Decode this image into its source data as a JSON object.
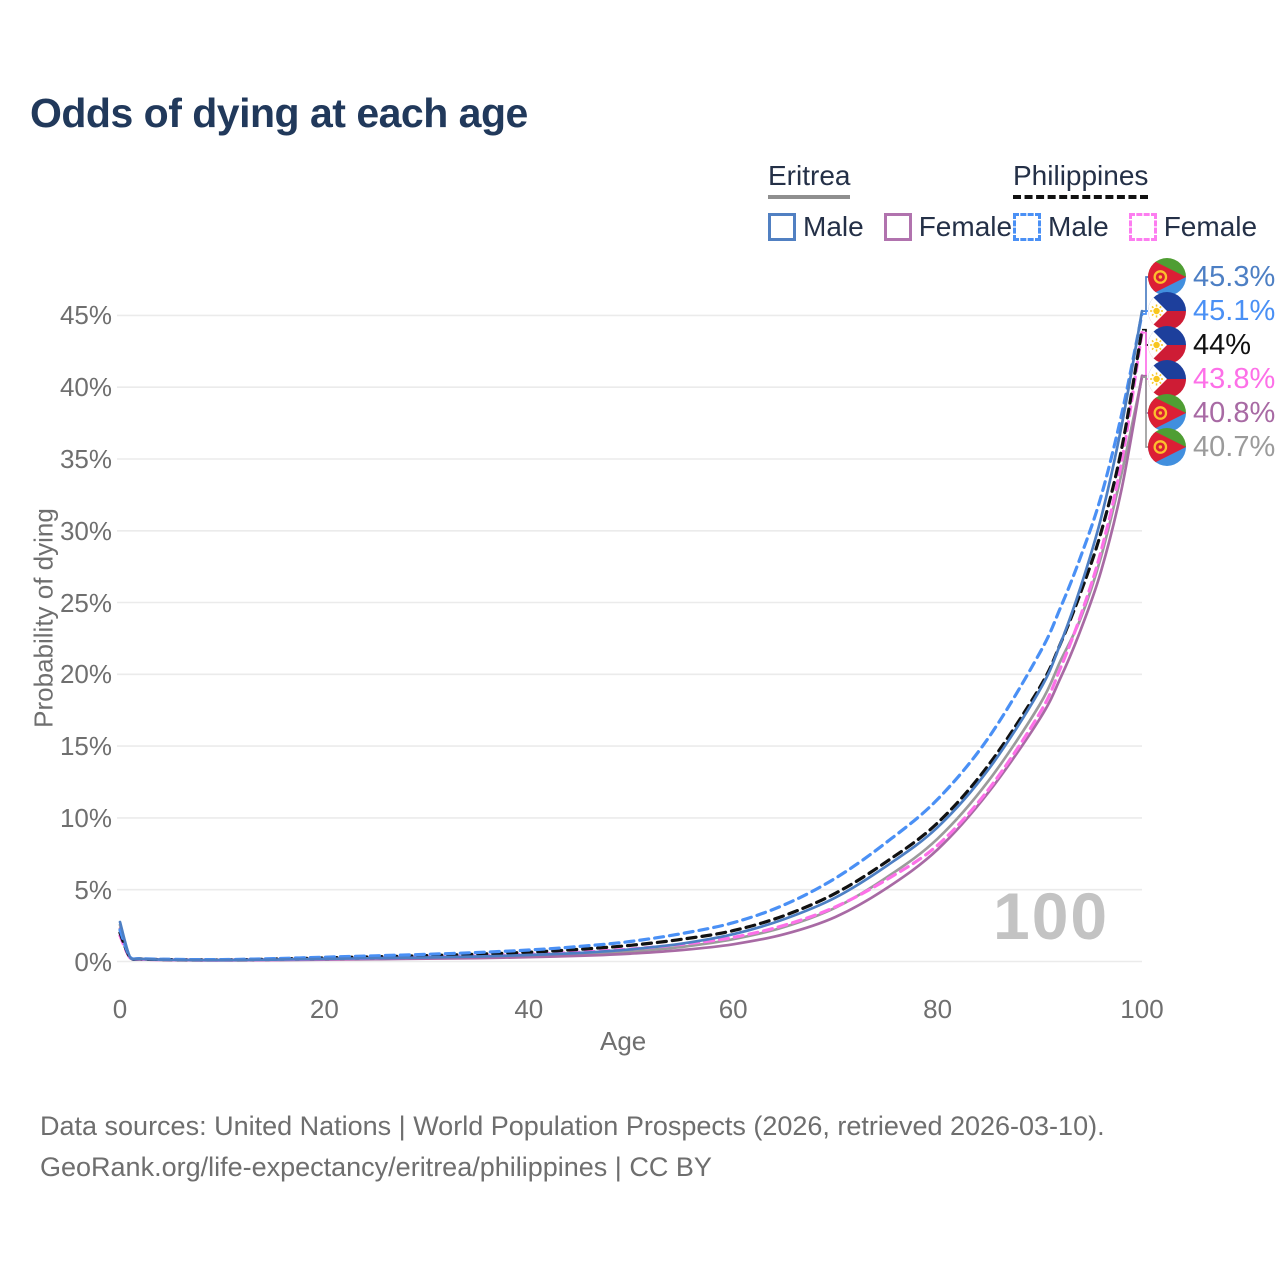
{
  "title": {
    "text": "Odds of dying at each age",
    "color": "#21395b"
  },
  "legend": {
    "text_color": "#243047",
    "groups": [
      {
        "name": "Eritrea",
        "underline_style": "solid",
        "underline_color": "#8f8f8f",
        "items": [
          {
            "label": "Male",
            "color": "#5180c2",
            "dash": false
          },
          {
            "label": "Female",
            "color": "#b173ae",
            "dash": false
          }
        ]
      },
      {
        "name": "Philippines",
        "underline_style": "dashed",
        "underline_color": "#111111",
        "items": [
          {
            "label": "Male",
            "color": "#4a90f5",
            "dash": true
          },
          {
            "label": "Female",
            "color": "#fd7df0",
            "dash": true
          }
        ]
      }
    ]
  },
  "axes": {
    "x_label": "Age",
    "y_label": "Probability of dying",
    "x_ticks": [
      0,
      20,
      40,
      60,
      80,
      100
    ],
    "x_tick_labels": [
      "0",
      "20",
      "40",
      "60",
      "80",
      "100"
    ],
    "y_ticks": [
      0,
      5,
      10,
      15,
      20,
      25,
      30,
      35,
      40,
      45
    ],
    "y_tick_labels": [
      "0%",
      "5%",
      "10%",
      "15%",
      "20%",
      "25%",
      "30%",
      "35%",
      "40%",
      "45%"
    ],
    "tick_color": "#6f6f6f",
    "grid_color": "#ebebeb"
  },
  "watermark": {
    "text": "100",
    "color": "#c3c3c3"
  },
  "footer": {
    "line1": "Data sources: United Nations | World Population Prospects (2026, retrieved 2026-03-10).",
    "line2": "GeoRank.org/life-expectancy/eritrea/philippines | CC BY",
    "color": "#6e6e6e"
  },
  "flags": {
    "eritrea": {
      "green": "#4f9e33",
      "blue": "#418fde",
      "red": "#dc1f35",
      "gold": "#fbc02d"
    },
    "philippines": {
      "blue": "#1d3f9c",
      "red": "#ce1c35",
      "white": "#ffffff",
      "gold": "#f8c61e"
    }
  },
  "chart_data": {
    "type": "line",
    "title": "Odds of dying at each age",
    "xlabel": "Age",
    "ylabel": "Probability of dying",
    "xlim": [
      0,
      100
    ],
    "ylim": [
      0,
      47
    ],
    "unit": "%",
    "grid": "horizontal",
    "ages": [
      0,
      1,
      2,
      5,
      10,
      15,
      20,
      25,
      30,
      35,
      40,
      45,
      50,
      55,
      60,
      65,
      70,
      75,
      80,
      85,
      90,
      92,
      94,
      96,
      98,
      100
    ],
    "series": [
      {
        "id": "eritrea-male",
        "name": "Eritrea Male",
        "country": "Eritrea",
        "sex": "Male",
        "color": "#4d7fc4",
        "dash": false,
        "flag": "eritrea",
        "end_label": "45.3%",
        "values": [
          2.75,
          0.28,
          0.18,
          0.12,
          0.1,
          0.13,
          0.18,
          0.23,
          0.28,
          0.35,
          0.45,
          0.6,
          0.85,
          1.25,
          1.9,
          2.95,
          4.45,
          6.65,
          9.35,
          13.4,
          18.9,
          22.1,
          26.1,
          30.9,
          37.3,
          45.3
        ]
      },
      {
        "id": "philippines-male",
        "name": "Philippines Male",
        "country": "Philippines",
        "sex": "Male",
        "color": "#4a90f5",
        "dash": true,
        "flag": "philippines",
        "end_label": "45.1%",
        "values": [
          2.2,
          0.3,
          0.2,
          0.15,
          0.13,
          0.2,
          0.3,
          0.4,
          0.5,
          0.63,
          0.8,
          1.05,
          1.4,
          1.95,
          2.7,
          3.95,
          5.8,
          8.3,
          11.3,
          15.6,
          21.5,
          24.6,
          28.2,
          32.4,
          38.1,
          45.1
        ]
      },
      {
        "id": "philippines-both",
        "name": "Philippines Both sexes",
        "country": "Philippines",
        "sex": "Both",
        "color": "#111111",
        "dash": true,
        "flag": "philippines",
        "end_label": "44%",
        "values": [
          2.0,
          0.27,
          0.18,
          0.13,
          0.11,
          0.17,
          0.25,
          0.33,
          0.41,
          0.51,
          0.65,
          0.85,
          1.13,
          1.55,
          2.15,
          3.2,
          4.75,
          6.95,
          9.65,
          13.7,
          19.1,
          22.1,
          25.7,
          29.9,
          35.7,
          44.0
        ]
      },
      {
        "id": "philippines-female",
        "name": "Philippines Female",
        "country": "Philippines",
        "sex": "Female",
        "color": "#fd70e8",
        "dash": true,
        "flag": "philippines",
        "end_label": "43.8%",
        "values": [
          1.8,
          0.24,
          0.16,
          0.12,
          0.1,
          0.13,
          0.18,
          0.24,
          0.31,
          0.39,
          0.5,
          0.65,
          0.87,
          1.2,
          1.68,
          2.52,
          3.8,
          5.7,
          8.1,
          12.0,
          17.3,
          20.4,
          24.1,
          28.6,
          34.8,
          43.8
        ]
      },
      {
        "id": "eritrea-female",
        "name": "Eritrea Female",
        "country": "Eritrea",
        "sex": "Female",
        "color": "#a86aa4",
        "dash": false,
        "flag": "eritrea",
        "end_label": "40.8%",
        "values": [
          2.3,
          0.24,
          0.15,
          0.1,
          0.08,
          0.1,
          0.13,
          0.16,
          0.2,
          0.24,
          0.3,
          0.4,
          0.55,
          0.8,
          1.2,
          1.9,
          3.1,
          5.1,
          7.8,
          11.8,
          16.9,
          19.7,
          23.1,
          27.2,
          32.9,
          40.8
        ]
      },
      {
        "id": "eritrea-both",
        "name": "Eritrea Both sexes",
        "country": "Eritrea",
        "sex": "Both",
        "color": "#9b9b9b",
        "dash": false,
        "flag": "eritrea",
        "end_label": "40.7%",
        "values": [
          2.55,
          0.26,
          0.17,
          0.11,
          0.09,
          0.12,
          0.15,
          0.19,
          0.24,
          0.29,
          0.37,
          0.5,
          0.7,
          1.02,
          1.55,
          2.4,
          3.75,
          5.85,
          8.55,
          12.6,
          17.9,
          20.9,
          23.9,
          28.2,
          34.0,
          40.7
        ]
      }
    ]
  }
}
